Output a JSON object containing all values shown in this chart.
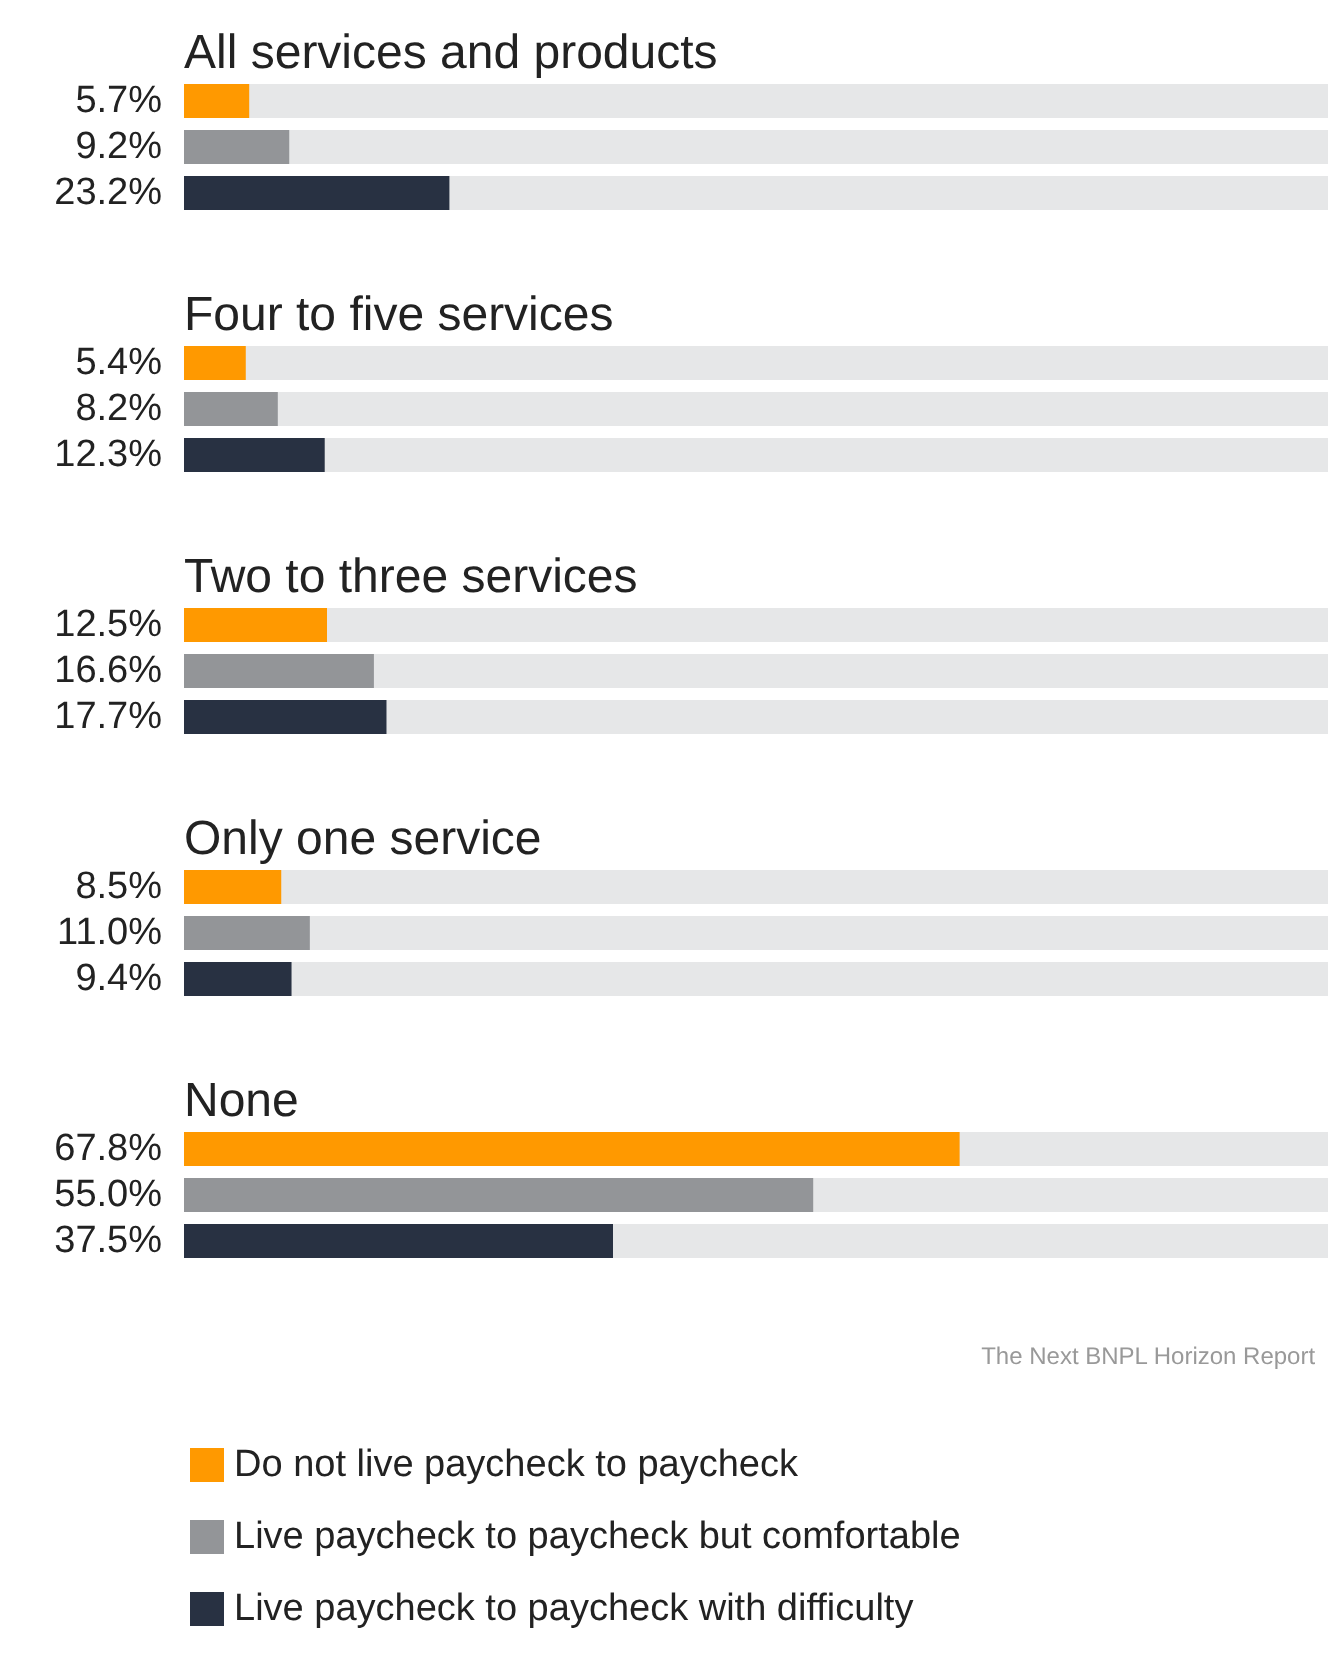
{
  "chart_data": {
    "type": "bar",
    "orientation": "horizontal",
    "categories": [
      "All services and products",
      "Four to five services",
      "Two to three services",
      "Only one service",
      "None"
    ],
    "series": [
      {
        "name": "Do not live paycheck to paycheck",
        "color": "#ff9900",
        "values": [
          5.7,
          5.4,
          12.5,
          8.5,
          67.8
        ],
        "value_labels": [
          "5.7%",
          "5.4%",
          "12.5%",
          "8.5%",
          "67.8%"
        ]
      },
      {
        "name": "Live paycheck to paycheck but comfortable",
        "color": "#939598",
        "values": [
          9.2,
          8.2,
          16.6,
          11.0,
          55.0
        ],
        "value_labels": [
          "9.2%",
          "8.2%",
          "16.6%",
          "11.0%",
          "55.0%"
        ]
      },
      {
        "name": "Live paycheck to paycheck with difficulty",
        "color": "#283142",
        "values": [
          23.2,
          12.3,
          17.7,
          9.4,
          37.5
        ],
        "value_labels": [
          "23.2%",
          "12.3%",
          "17.7%",
          "9.4%",
          "37.5%"
        ]
      }
    ],
    "xlim": [
      0,
      100
    ],
    "tick_labels": "y",
    "grid": false,
    "legend": "bottom left",
    "annotations": [
      "The Next BNPL Horizon Report"
    ]
  }
}
